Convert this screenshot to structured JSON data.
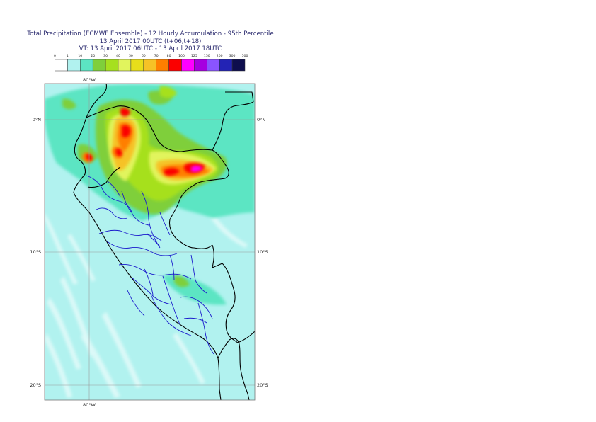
{
  "title": {
    "line1": "Total Precipitation (ECMWF Ensemble) - 12 Hourly Accumulation - 95th Percentile",
    "line2": "13 April 2017 00UTC (t+06,t+18)",
    "line3": "VT: 13 April 2017 06UTC - 13 April 2017 18UTC"
  },
  "legend": {
    "ticks": [
      "0",
      "1",
      "10",
      "20",
      "30",
      "40",
      "50",
      "60",
      "70",
      "80",
      "100",
      "125",
      "150",
      "200",
      "300",
      "500"
    ],
    "colors": [
      "#ffffff",
      "#b1f2ef",
      "#5ce5c3",
      "#7fcf3b",
      "#a6e01f",
      "#e1f45d",
      "#e7de1b",
      "#f6c226",
      "#ff7f00",
      "#fb0000",
      "#ff00ff",
      "#a600e0",
      "#8a54ff",
      "#2323b5",
      "#0e0e4e"
    ]
  },
  "map": {
    "lon_labels_top": [
      "80°W"
    ],
    "lon_labels_bottom": [
      "80°W"
    ],
    "lat_labels_left": [
      "0°N",
      "10°S",
      "20°S"
    ],
    "lat_labels_right": [
      "0°N",
      "10°S",
      "20°S"
    ],
    "grid": true,
    "ocean_color": "#b1f2ef",
    "land_color": "#b1f2ef",
    "border_color": "#000000",
    "admin_color": "#1a1acc"
  }
}
